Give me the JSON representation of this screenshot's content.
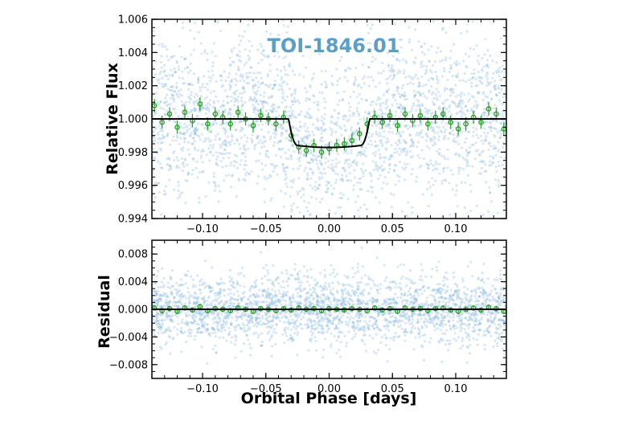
{
  "colors": {
    "raw_points": "#8bbbe0",
    "binned_points": "#2ca02c",
    "model_line": "#000000",
    "title": "#5b9fc6",
    "frame": "#000000"
  },
  "chart_data": [
    {
      "type": "scatter",
      "panel": "top",
      "title": "TOI-1846.01",
      "xlabel": "",
      "ylabel": "Relative Flux",
      "xlim": [
        -0.14,
        0.14
      ],
      "ylim": [
        0.994,
        1.006
      ],
      "x_ticks": [
        "−0.10",
        "−0.05",
        "0.00",
        "0.05",
        "0.10"
      ],
      "x_tick_values": [
        -0.1,
        -0.05,
        0.0,
        0.05,
        0.1
      ],
      "y_ticks": [
        "0.994",
        "0.996",
        "0.998",
        "1.000",
        "1.002",
        "1.004",
        "1.006"
      ],
      "y_tick_values": [
        0.994,
        0.996,
        0.998,
        1.0,
        1.002,
        1.004,
        1.006
      ],
      "grid": false,
      "raw_scatter_sigma": 0.0025,
      "model": {
        "baseline": 1.0,
        "depth": 0.0016,
        "ingress_start": -0.032,
        "ingress_end": -0.025,
        "egress_start": 0.025,
        "egress_end": 0.032
      },
      "binned_points": {
        "x": [
          -0.138,
          -0.132,
          -0.126,
          -0.12,
          -0.114,
          -0.108,
          -0.102,
          -0.096,
          -0.09,
          -0.084,
          -0.078,
          -0.072,
          -0.066,
          -0.06,
          -0.054,
          -0.048,
          -0.042,
          -0.036,
          -0.03,
          -0.024,
          -0.018,
          -0.012,
          -0.006,
          0.0,
          0.006,
          0.012,
          0.018,
          0.024,
          0.03,
          0.036,
          0.042,
          0.048,
          0.054,
          0.06,
          0.066,
          0.072,
          0.078,
          0.084,
          0.09,
          0.096,
          0.102,
          0.108,
          0.114,
          0.12,
          0.126,
          0.132,
          0.138
        ],
        "y": [
          1.0008,
          0.9998,
          1.0003,
          0.9995,
          1.0004,
          0.9999,
          1.0009,
          0.9997,
          1.0003,
          1.0001,
          0.9997,
          1.0004,
          1.0,
          0.9996,
          1.0002,
          1.0,
          0.9997,
          1.0001,
          0.999,
          0.9983,
          0.9981,
          0.9984,
          0.998,
          0.9982,
          0.9984,
          0.9985,
          0.9987,
          0.9991,
          0.9997,
          1.0001,
          0.9998,
          1.0002,
          0.9996,
          1.0003,
          0.9999,
          1.0002,
          0.9997,
          1.0001,
          1.0003,
          0.9998,
          0.9994,
          0.9997,
          1.0001,
          0.9998,
          1.0006,
          1.0003,
          0.9994
        ],
        "yerr": 0.0004
      }
    },
    {
      "type": "scatter",
      "panel": "bottom",
      "title": "",
      "xlabel": "Orbital Phase [days]",
      "ylabel": "Residual",
      "xlim": [
        -0.14,
        0.14
      ],
      "ylim": [
        -0.01,
        0.01
      ],
      "x_ticks": [
        "−0.10",
        "−0.05",
        "0.00",
        "0.05",
        "0.10"
      ],
      "x_tick_values": [
        -0.1,
        -0.05,
        0.0,
        0.05,
        0.1
      ],
      "y_ticks": [
        "−0.008",
        "−0.004",
        "0.000",
        "0.004",
        "0.008"
      ],
      "y_tick_values": [
        -0.008,
        -0.004,
        0.0,
        0.004,
        0.008
      ],
      "grid": false,
      "raw_scatter_sigma": 0.0025,
      "model": {
        "baseline": 0.0
      },
      "binned_points": {
        "x": [
          -0.138,
          -0.132,
          -0.126,
          -0.12,
          -0.114,
          -0.108,
          -0.102,
          -0.096,
          -0.09,
          -0.084,
          -0.078,
          -0.072,
          -0.066,
          -0.06,
          -0.054,
          -0.048,
          -0.042,
          -0.036,
          -0.03,
          -0.024,
          -0.018,
          -0.012,
          -0.006,
          0.0,
          0.006,
          0.012,
          0.018,
          0.024,
          0.03,
          0.036,
          0.042,
          0.048,
          0.054,
          0.06,
          0.066,
          0.072,
          0.078,
          0.084,
          0.09,
          0.096,
          0.102,
          0.108,
          0.114,
          0.12,
          0.126,
          0.132,
          0.138
        ],
        "y": [
          0.0002,
          -0.0002,
          0.0001,
          -0.0003,
          0.0002,
          -0.0001,
          0.0004,
          -0.0002,
          0.0001,
          0.0,
          -0.0002,
          0.0002,
          0.0,
          -0.0003,
          0.0001,
          0.0,
          -0.0002,
          0.0001,
          -0.0001,
          0.0002,
          0.0,
          0.0001,
          -0.0002,
          0.0001,
          0.0,
          -0.0001,
          0.0001,
          0.0,
          -0.0002,
          0.0002,
          -0.0001,
          0.0001,
          -0.0003,
          0.0002,
          0.0,
          0.0001,
          -0.0002,
          0.0001,
          0.0002,
          -0.0001,
          -0.0003,
          0.0,
          0.0002,
          -0.0001,
          0.0003,
          0.0001,
          -0.0003
        ],
        "yerr": 0.0004
      }
    }
  ]
}
